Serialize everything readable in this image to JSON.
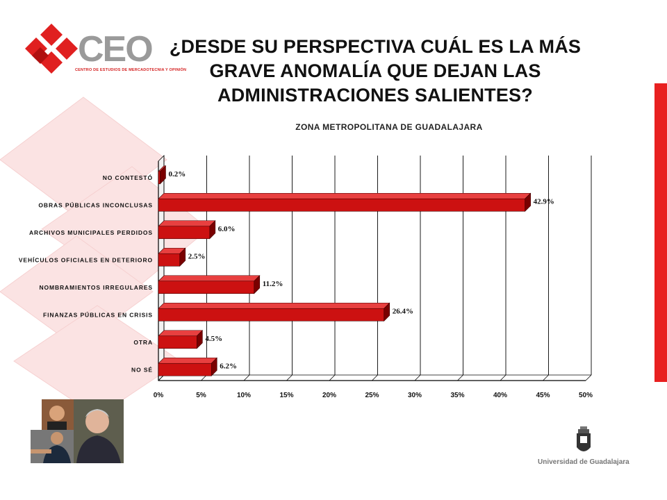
{
  "header": {
    "title_lines": [
      "¿DESDE SU PERSPECTIVA CUÁL ES LA MÁS",
      "GRAVE ANOMALÍA QUE DEJAN LAS",
      "ADMINISTRACIONES SALIENTES?"
    ],
    "subtitle": "ZONA METROPOLITANA DE GUADALAJARA"
  },
  "logo": {
    "text": "CEO",
    "tagline": "CENTRO DE ESTUDIOS DE MERCADOTECNIA Y OPINIÓN",
    "icon": "ceo-diamond-logo-icon"
  },
  "footer": {
    "university": "Universidad de Guadalajara",
    "crest_icon": "udg-crest-icon",
    "photo_icon": "politicians-photo-collage-icon"
  },
  "colors": {
    "bar": "#cc1111",
    "bar_dark": "#7a0000",
    "accent": "#e82020"
  },
  "chart_data": {
    "type": "bar",
    "orientation": "horizontal",
    "title": "¿DESDE SU PERSPECTIVA CUÁL ES LA MÁS GRAVE ANOMALÍA QUE DEJAN LAS ADMINISTRACIONES SALIENTES?",
    "subtitle": "ZONA METROPOLITANA DE GUADALAJARA",
    "categories": [
      "NO CONTESTÓ",
      "OBRAS PÚBLICAS INCONCLUSAS",
      "ARCHIVOS MUNICIPALES PERDIDOS",
      "VEHÍCULOS OFICIALES EN DETERIORO",
      "NOMBRAMIENTOS IRREGULARES",
      "FINANZAS PÚBLICAS EN CRISIS",
      "OTRA",
      "NO SÉ"
    ],
    "values": [
      0.2,
      42.9,
      6.0,
      2.5,
      11.2,
      26.4,
      4.5,
      6.2
    ],
    "data_labels": [
      "0.2%",
      "42.9%",
      "6.0%",
      "2.5%",
      "11.2%",
      "26.4%",
      "4.5%",
      "6.2%"
    ],
    "xlim": [
      0,
      50
    ],
    "ticks": [
      "0%",
      "5%",
      "10%",
      "15%",
      "20%",
      "25%",
      "30%",
      "35%",
      "40%",
      "45%",
      "50%"
    ],
    "grid": true,
    "xlabel": "",
    "ylabel": ""
  }
}
